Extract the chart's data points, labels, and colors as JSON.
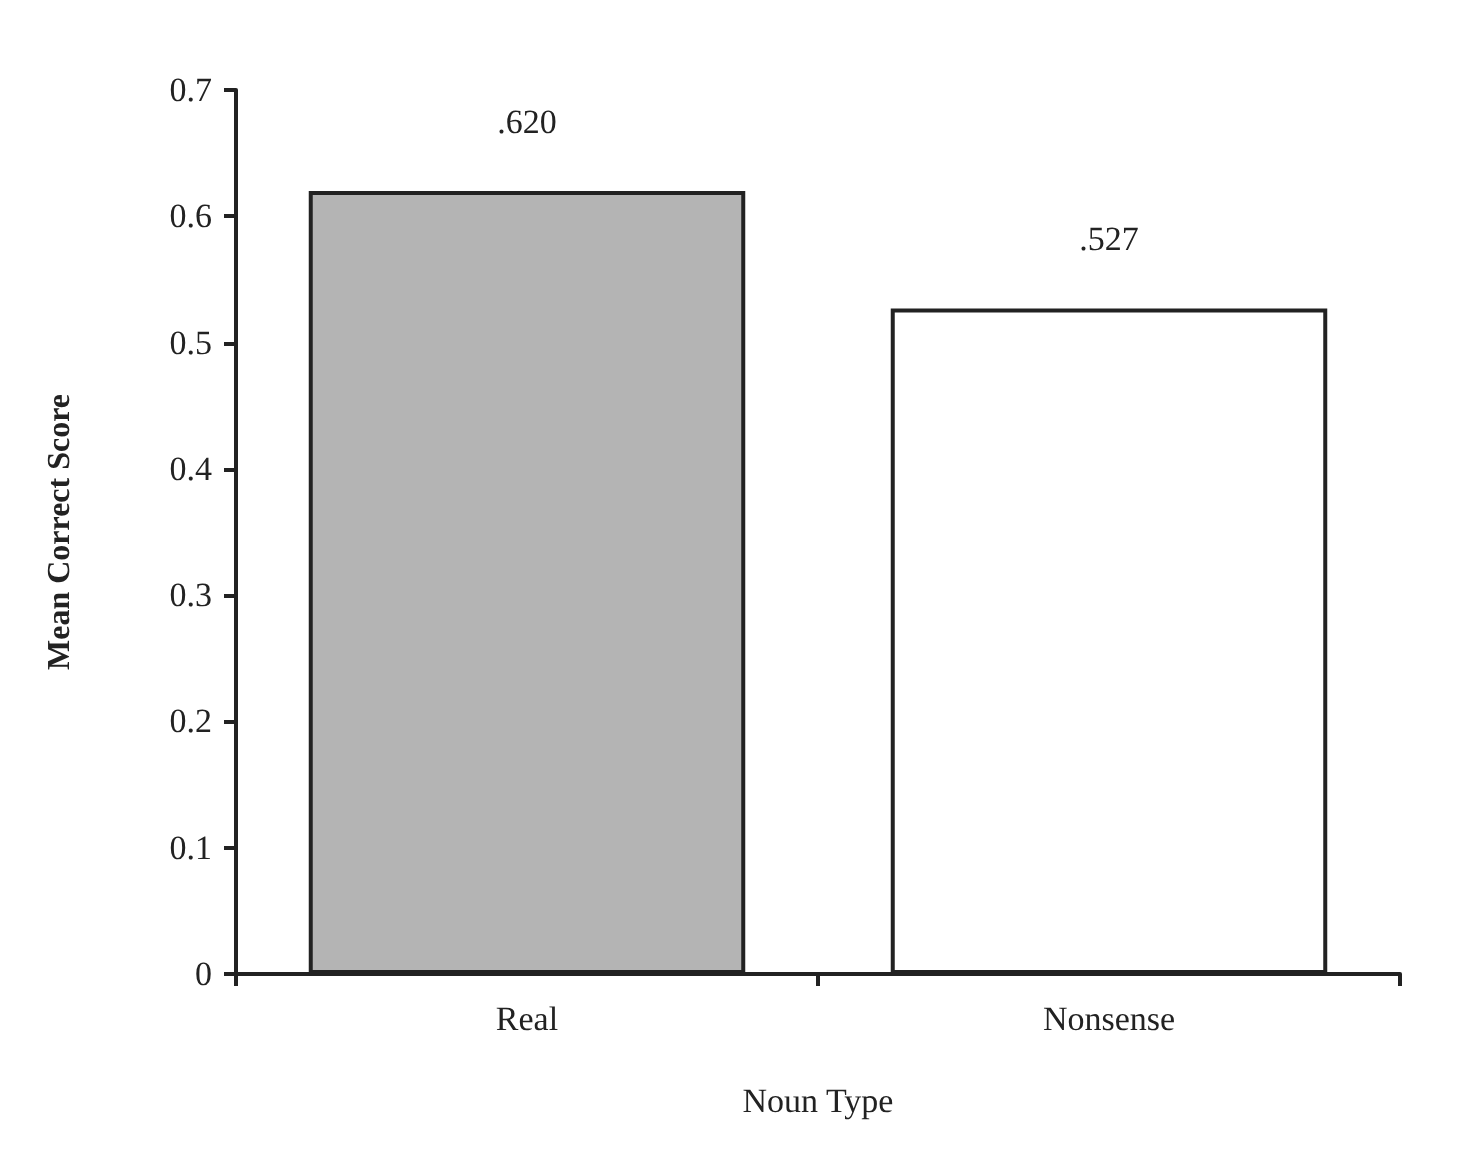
{
  "chart_data": {
    "type": "bar",
    "xlabel": "Noun Type",
    "ylabel": "Mean Correct Score",
    "categories": [
      "Real",
      "Nonsense"
    ],
    "values": [
      0.62,
      0.527
    ],
    "value_labels": [
      ".620",
      ".527"
    ],
    "colors": [
      "#b4b4b4",
      "#ffffff"
    ],
    "ylim": [
      0,
      0.7
    ],
    "yticks": [
      0,
      0.1,
      0.2,
      0.3,
      0.4,
      0.5,
      0.6,
      0.7
    ],
    "grid": false
  }
}
